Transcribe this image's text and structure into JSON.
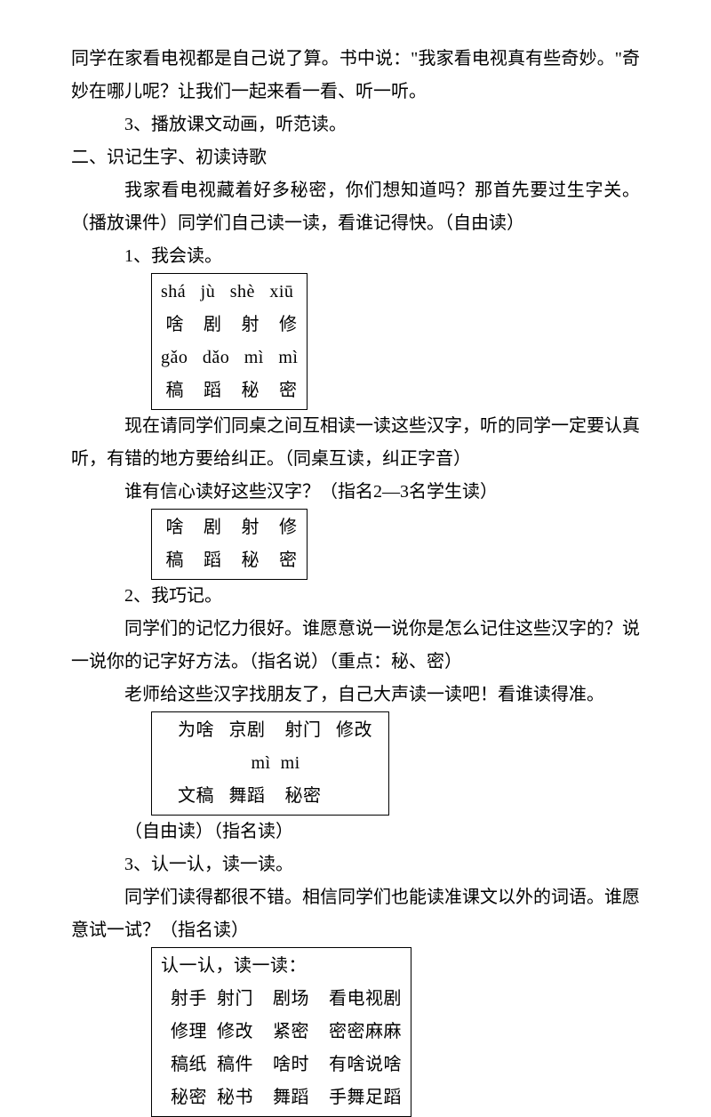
{
  "intro": {
    "p1": "同学在家看电视都是自己说了算。书中说：\"我家看电视真有些奇妙。\"奇妙在哪儿呢？让我们一起来看一看、听一听。",
    "p2": "3、播放课文动画，听范读。"
  },
  "section2": {
    "heading": "二、识记生字、初读诗歌",
    "p1": "我家看电视藏着好多秘密，你们想知道吗？那首先要过生字关。（播放课件）同学们自己读一读，看谁记得快。（自由读）",
    "item1": "1、我会读。",
    "box1": {
      "r1": "shá   jù   shè   xiū",
      "r2": " 啥    剧    射    修",
      "r3": "gǎo   dǎo   mì   mì",
      "r4": " 稿    蹈    秘    密"
    },
    "p2": "现在请同学们同桌之间互相读一读这些汉字，听的同学一定要认真听，有错的地方要给纠正。（同桌互读，纠正字音）",
    "p3": "谁有信心读好这些汉字？（指名2—3名学生读）",
    "box2": {
      "r1": " 啥    剧    射    修",
      "r2": " 稿    蹈    秘    密"
    },
    "item2": "2、我巧记。",
    "p4": "同学们的记忆力很好。谁愿意说一说你是怎么记住这些汉字的？说一说你的记字好方法。（指名说）（重点：秘、密）",
    "p5": "老师给这些汉字找朋友了，自己大声读一读吧！看谁读得准。",
    "box3": {
      "r1": "  为啥   京剧    射门   修改",
      "r2": "                 mì  mi",
      "r3": "  文稿   舞蹈    秘密"
    },
    "p6": "（自由读）（指名读）",
    "item3": "3、认一认，读一读。",
    "p7": "同学们读得都很不错。相信同学们也能读准课文以外的词语。谁愿意试一试？（指名读）",
    "box4": {
      "r1": "认一认，读一读：",
      "r2": "  射手  射门    剧场    看电视剧",
      "r3": "  修理  修改    紧密    密密麻麻",
      "r4": "  稿纸  稿件    啥时    有啥说啥",
      "r5": "  秘密  秘书    舞蹈    手舞足蹈"
    }
  }
}
